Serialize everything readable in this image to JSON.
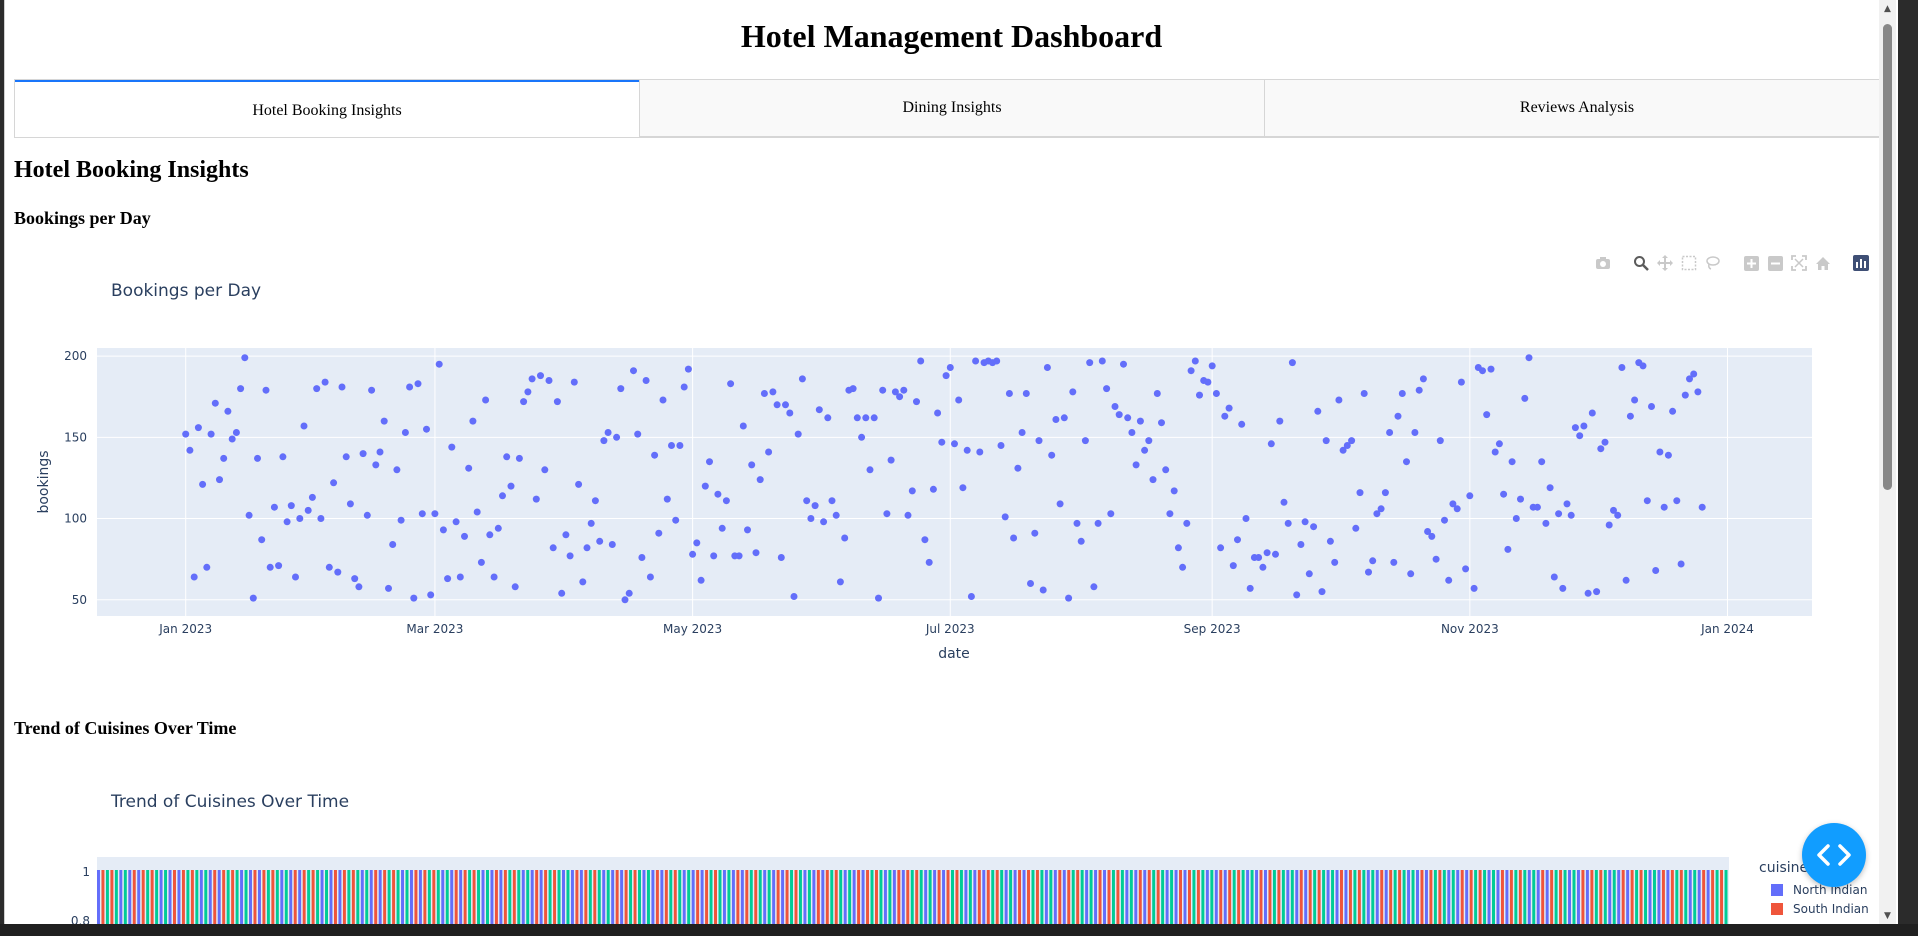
{
  "page": {
    "title": "Hotel Management Dashboard"
  },
  "tabs": [
    {
      "label": "Hotel Booking Insights",
      "active": true
    },
    {
      "label": "Dining Insights",
      "active": false
    },
    {
      "label": "Reviews Analysis",
      "active": false
    }
  ],
  "section": {
    "heading": "Hotel Booking Insights",
    "bookings_heading": "Bookings per Day",
    "cuisine_heading": "Trend of Cuisines Over Time"
  },
  "modebar": {
    "icons": [
      "camera-icon",
      "zoom-icon",
      "pan-icon",
      "box-select-icon",
      "lasso-icon",
      "zoom-in-icon",
      "zoom-out-icon",
      "autoscale-icon",
      "reset-axes-icon",
      "plotly-logo-icon"
    ]
  },
  "colors": {
    "accent": "#1975FA",
    "series": "#636EFA",
    "plot_bg": "#E5ECF6",
    "text": "#2a3f5f",
    "north_indian": "#636EFA",
    "south_indian": "#EF553B",
    "third": "#00CC96"
  },
  "chart_data": [
    {
      "type": "scatter",
      "title": "Bookings per Day",
      "xlabel": "date",
      "ylabel": "bookings",
      "x_ticks": [
        "Jan 2023",
        "Mar 2023",
        "May 2023",
        "Jul 2023",
        "Sep 2023",
        "Nov 2023",
        "Jan 2024"
      ],
      "y_ticks": [
        50,
        100,
        150,
        200
      ],
      "xlim": [
        "2022-12-11",
        "2024-01-21"
      ],
      "ylim": [
        40,
        205
      ],
      "grid": true,
      "series": [
        {
          "values": [
            152,
            142,
            64,
            156,
            121,
            70,
            152,
            171,
            124,
            137,
            166,
            149,
            153,
            180,
            199,
            102,
            51,
            137,
            87,
            179,
            70,
            107,
            71,
            138,
            98,
            108,
            64,
            100,
            157,
            105,
            113,
            180,
            100,
            184,
            70,
            122,
            67,
            181,
            138,
            109,
            63,
            58,
            140,
            102,
            179,
            133,
            141,
            160,
            57,
            84,
            130,
            99,
            153,
            181,
            51,
            183,
            103,
            155,
            53,
            103,
            195,
            93,
            63,
            144,
            98,
            64,
            89,
            131,
            160,
            104,
            73,
            173,
            90,
            64,
            94,
            114,
            138,
            120,
            58,
            137,
            172,
            178,
            186,
            112,
            188,
            130,
            185,
            82,
            172,
            54,
            90,
            77,
            184,
            121,
            61,
            82,
            97,
            111,
            86,
            148,
            153,
            84,
            150,
            180,
            50,
            54,
            191,
            152,
            76,
            185,
            64,
            139,
            91,
            173,
            112,
            145,
            99,
            145,
            181,
            192,
            78,
            85,
            62,
            120,
            135,
            77,
            115,
            94,
            111,
            183,
            77,
            77,
            157,
            93,
            133,
            79,
            124,
            177,
            141,
            178,
            170,
            76,
            170,
            165,
            52,
            152,
            186,
            111,
            100,
            108,
            167,
            98,
            162,
            111,
            102,
            61,
            88,
            179,
            180,
            162,
            150,
            162,
            130,
            162,
            51,
            179,
            103,
            136,
            178,
            175,
            179,
            102,
            117,
            172,
            197,
            87,
            73,
            118,
            165,
            147,
            188,
            193,
            146,
            173,
            119,
            142,
            52,
            197,
            141,
            196,
            197,
            196,
            197,
            145,
            101,
            177,
            88,
            131,
            153,
            177,
            60,
            91,
            148,
            56,
            193,
            139,
            161,
            109,
            162,
            51,
            178,
            97,
            86,
            148,
            196,
            58,
            97,
            197,
            180,
            103,
            169,
            164,
            195,
            162,
            153,
            133,
            160,
            142,
            148,
            124,
            177,
            159,
            130,
            103,
            117,
            82,
            70,
            97,
            191,
            197,
            176,
            185,
            184,
            194,
            177,
            82,
            163,
            168,
            71,
            87,
            158,
            100,
            57,
            76,
            76,
            70,
            79,
            146,
            78,
            160,
            110,
            97,
            196,
            53,
            84,
            98,
            66,
            95,
            166,
            55,
            148,
            86,
            73,
            173,
            142,
            145,
            148,
            94,
            116,
            177,
            67,
            74,
            103,
            106,
            116,
            153,
            73,
            163,
            177,
            135,
            66,
            153,
            179,
            186,
            92,
            89,
            75,
            148,
            99,
            62,
            109,
            106,
            184,
            69,
            114,
            57,
            193,
            191,
            164,
            192,
            141,
            146,
            115,
            81,
            135,
            100,
            112,
            174,
            199,
            107,
            107,
            135,
            97,
            119,
            64,
            103,
            57,
            109,
            102,
            156,
            151,
            157,
            54,
            165,
            55,
            143,
            147,
            96,
            105,
            102,
            193,
            62,
            163,
            173,
            196,
            194,
            111,
            169,
            68,
            141,
            107,
            139,
            166,
            111,
            72,
            176,
            186,
            189,
            178,
            107
          ]
        }
      ]
    },
    {
      "type": "bar",
      "title": "Trend of Cuisines Over Time",
      "y_ticks": [
        1,
        0.8
      ],
      "ylim": [
        0,
        1
      ],
      "legend_title": "cuisine",
      "legend": [
        "North Indian",
        "South Indian"
      ],
      "legend_position": "right",
      "series": [
        {
          "name": "North Indian",
          "values": [
            1
          ]
        },
        {
          "name": "South Indian",
          "values": [
            1
          ]
        }
      ]
    }
  ]
}
